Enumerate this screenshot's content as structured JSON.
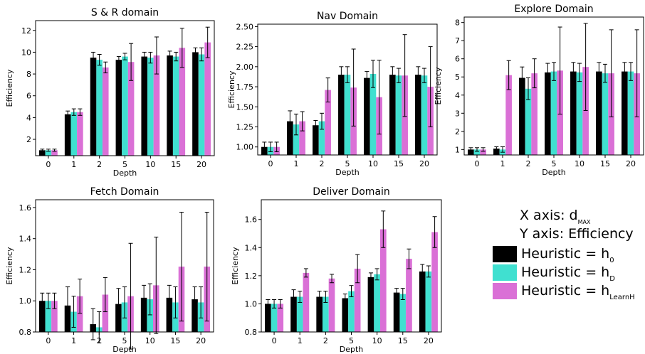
{
  "colors": {
    "h0": "#000000",
    "hD": "#40e0d0",
    "hLearnH": "#da70d6"
  },
  "legend": {
    "x_axis_prefix": "X axis: d",
    "x_axis_sub": "MAX",
    "y_axis_text": "Y axis: Efficiency",
    "items": [
      {
        "prefix": "Heuristic = h",
        "sub": "0"
      },
      {
        "prefix": "Heuristic = h",
        "sub": "D"
      },
      {
        "prefix": "Heuristic = h",
        "sub": "LearnH"
      }
    ]
  },
  "chart_data": [
    {
      "type": "bar",
      "title": "S & R domain",
      "xlabel": "Depth",
      "ylabel": "Efficiency",
      "categories": [
        "0",
        "1",
        "2",
        "5",
        "10",
        "15",
        "20"
      ],
      "ylim": [
        0.5,
        12.9
      ],
      "yticks": [
        2,
        4,
        6,
        8,
        10,
        12
      ],
      "ytick_labels": [
        "2",
        "4",
        "6",
        "8",
        "10",
        "12"
      ],
      "series": [
        {
          "values": [
            1.0,
            4.3,
            9.5,
            9.3,
            9.6,
            9.7,
            10.0
          ],
          "err": [
            0.1,
            0.3,
            0.5,
            0.3,
            0.4,
            0.4,
            0.4
          ]
        },
        {
          "values": [
            1.0,
            4.5,
            9.3,
            9.6,
            9.5,
            9.6,
            9.8
          ],
          "err": [
            0.1,
            0.3,
            0.5,
            0.3,
            0.5,
            0.4,
            0.6
          ]
        },
        {
          "values": [
            1.0,
            4.5,
            8.6,
            9.1,
            9.7,
            10.4,
            10.9
          ],
          "err": [
            0.1,
            0.3,
            0.5,
            1.7,
            1.7,
            1.8,
            1.4
          ]
        }
      ]
    },
    {
      "type": "bar",
      "title": "Nav Domain",
      "xlabel": "Depth",
      "ylabel": "Efficiency",
      "categories": [
        "0",
        "1",
        "2",
        "5",
        "10",
        "15",
        "20"
      ],
      "ylim": [
        0.9,
        2.53
      ],
      "yticks": [
        1.0,
        1.25,
        1.5,
        1.75,
        2.0,
        2.25,
        2.5
      ],
      "ytick_labels": [
        "1.00",
        "1.25",
        "1.50",
        "1.75",
        "2.00",
        "2.25",
        "2.50"
      ],
      "series": [
        {
          "values": [
            1.0,
            1.32,
            1.27,
            1.9,
            1.86,
            1.9,
            1.9
          ],
          "err": [
            0.06,
            0.13,
            0.06,
            0.1,
            0.08,
            0.1,
            0.1
          ]
        },
        {
          "values": [
            1.0,
            1.28,
            1.32,
            1.9,
            1.91,
            1.89,
            1.89
          ],
          "err": [
            0.06,
            0.13,
            0.1,
            0.1,
            0.17,
            0.09,
            0.09
          ]
        },
        {
          "values": [
            1.0,
            1.32,
            1.71,
            1.74,
            1.62,
            1.89,
            1.75
          ],
          "err": [
            0.06,
            0.12,
            0.15,
            0.48,
            0.46,
            0.51,
            0.5
          ]
        }
      ]
    },
    {
      "type": "bar",
      "title": "Explore Domain",
      "xlabel": "Depth",
      "ylabel": "Efficiency",
      "categories": [
        "0",
        "1",
        "2",
        "5",
        "10",
        "15",
        "20"
      ],
      "ylim": [
        0.7,
        8.3
      ],
      "yticks": [
        1,
        2,
        3,
        4,
        5,
        6,
        7,
        8
      ],
      "ytick_labels": [
        "1",
        "2",
        "3",
        "4",
        "5",
        "6",
        "7",
        "8"
      ],
      "series": [
        {
          "values": [
            1.0,
            1.05,
            4.95,
            5.25,
            5.3,
            5.3,
            5.3
          ],
          "err": [
            0.1,
            0.1,
            0.6,
            0.5,
            0.5,
            0.5,
            0.5
          ]
        },
        {
          "values": [
            1.0,
            1.0,
            4.35,
            5.3,
            5.25,
            5.2,
            5.3
          ],
          "err": [
            0.1,
            0.15,
            0.6,
            0.5,
            0.5,
            0.5,
            0.5
          ]
        },
        {
          "values": [
            1.0,
            5.1,
            5.2,
            5.35,
            5.55,
            5.2,
            5.2
          ],
          "err": [
            0.1,
            0.8,
            0.8,
            2.4,
            2.4,
            2.4,
            2.4
          ]
        }
      ]
    },
    {
      "type": "bar",
      "title": "Fetch Domain",
      "xlabel": "Depth",
      "ylabel": "Efficiency",
      "categories": [
        "0",
        "1",
        "2",
        "5",
        "10",
        "15",
        "20"
      ],
      "ylim": [
        0.8,
        1.65
      ],
      "yticks": [
        0.8,
        1.0,
        1.2,
        1.4,
        1.6
      ],
      "ytick_labels": [
        "0.8",
        "1.0",
        "1.2",
        "1.4",
        "1.6"
      ],
      "series": [
        {
          "values": [
            1.0,
            0.97,
            0.85,
            0.98,
            1.02,
            1.02,
            1.01
          ],
          "err": [
            0.05,
            0.12,
            0.1,
            0.1,
            0.08,
            0.08,
            0.08
          ]
        },
        {
          "values": [
            1.0,
            0.93,
            0.83,
            0.99,
            1.01,
            0.99,
            0.99
          ],
          "err": [
            0.05,
            0.1,
            0.1,
            0.1,
            0.1,
            0.1,
            0.1
          ]
        },
        {
          "values": [
            1.0,
            1.03,
            1.04,
            1.03,
            1.1,
            1.22,
            1.22
          ],
          "err": [
            0.05,
            0.11,
            0.11,
            0.34,
            0.31,
            0.35,
            0.35
          ]
        }
      ]
    },
    {
      "type": "bar",
      "title": "Deliver Domain",
      "xlabel": "Depth",
      "ylabel": "Efficiency",
      "categories": [
        "0",
        "1",
        "2",
        "5",
        "10",
        "15",
        "20"
      ],
      "ylim": [
        0.8,
        1.74
      ],
      "yticks": [
        0.8,
        1.0,
        1.2,
        1.4,
        1.6
      ],
      "ytick_labels": [
        "0.8",
        "1.0",
        "1.2",
        "1.4",
        "1.6"
      ],
      "series": [
        {
          "values": [
            1.0,
            1.05,
            1.05,
            1.04,
            1.19,
            1.08,
            1.23
          ],
          "err": [
            0.03,
            0.05,
            0.04,
            0.03,
            0.03,
            0.03,
            0.05
          ]
        },
        {
          "values": [
            1.0,
            1.05,
            1.05,
            1.09,
            1.21,
            1.07,
            1.23
          ],
          "err": [
            0.03,
            0.04,
            0.04,
            0.04,
            0.04,
            0.04,
            0.04
          ]
        },
        {
          "values": [
            1.0,
            1.22,
            1.18,
            1.25,
            1.53,
            1.32,
            1.51
          ],
          "err": [
            0.03,
            0.03,
            0.03,
            0.1,
            0.13,
            0.07,
            0.11
          ]
        }
      ]
    }
  ]
}
